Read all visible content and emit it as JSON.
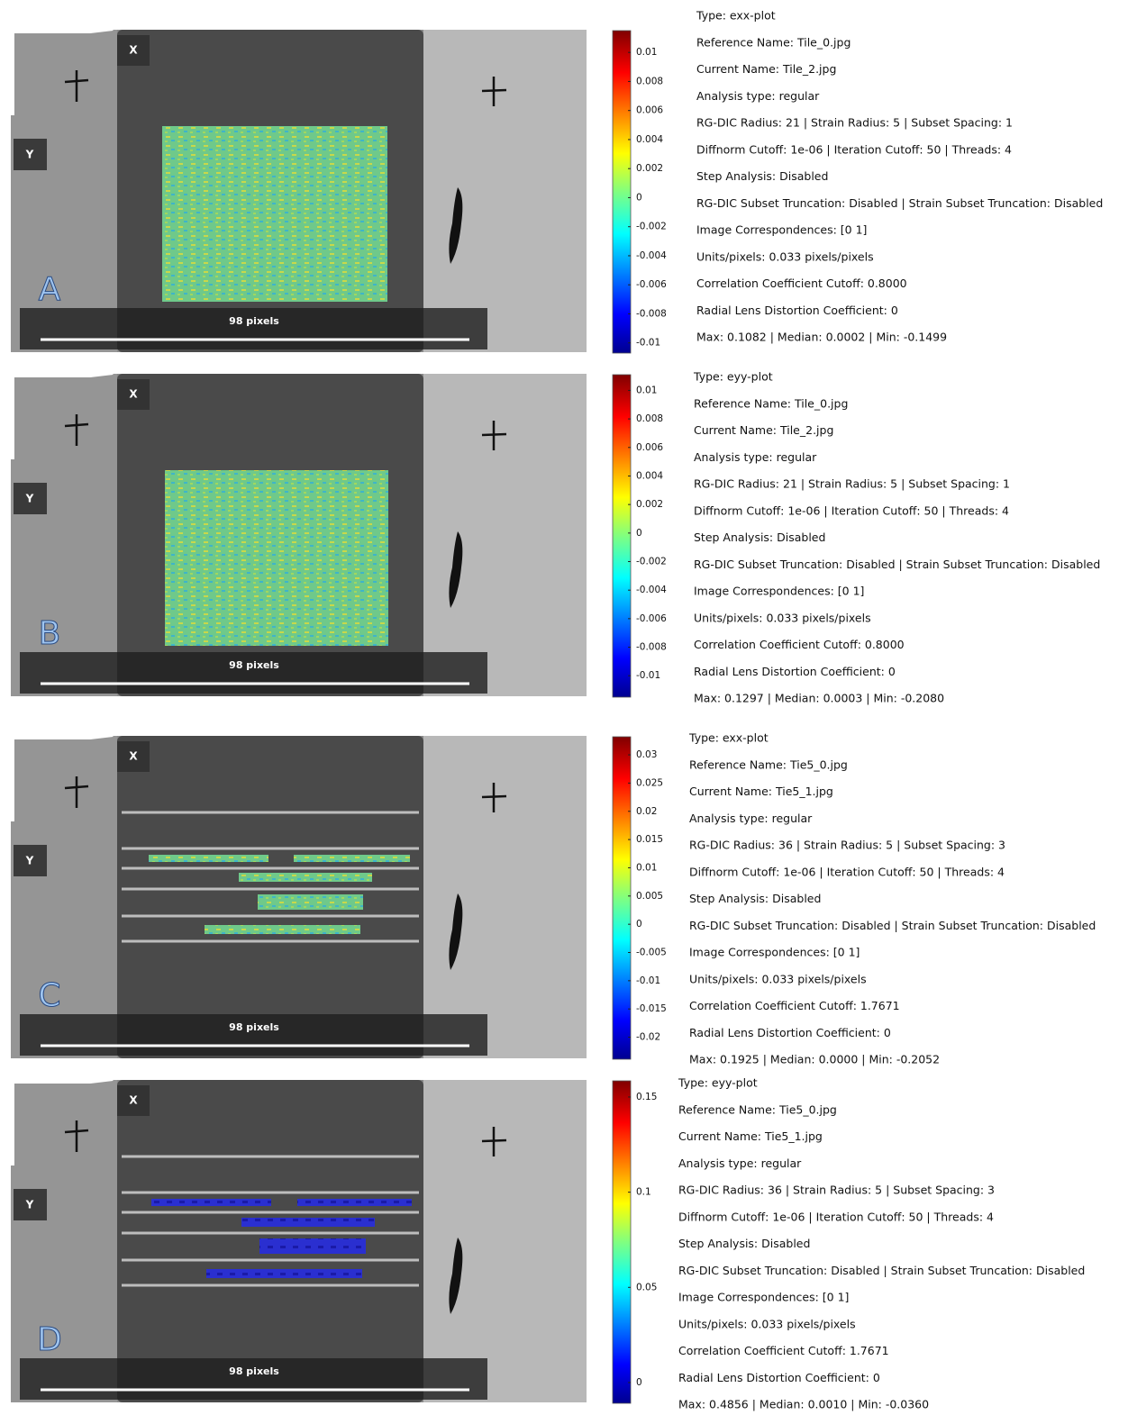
{
  "panels": [
    {
      "label": "A",
      "x_axis_label": "X",
      "y_axis_label": "Y",
      "scale_bar": "98 pixels",
      "colorbar": {
        "lim": [
          -0.0107,
          0.0115
        ],
        "ticks": [
          0.01,
          0.008,
          0.006,
          0.004,
          0.002,
          0,
          -0.002,
          -0.004,
          -0.006,
          -0.008,
          -0.01
        ]
      },
      "info": [
        "Type: exx-plot",
        "Reference Name: Tile_0.jpg",
        "Current Name: Tile_2.jpg",
        "Analysis type: regular",
        "RG-DIC Radius: 21 | Strain Radius: 5 | Subset Spacing: 1",
        "Diffnorm Cutoff: 1e-06 | Iteration Cutoff: 50 | Threads: 4",
        "Step Analysis: Disabled",
        "RG-DIC Subset Truncation: Disabled | Strain Subset Truncation: Disabled",
        "Image Correspondences: [0 1]",
        "Units/pixels: 0.033 pixels/pixels",
        "Correlation Coefficient Cutoff: 0.8000",
        "Radial Lens Distortion Coefficient: 0",
        "Max: 0.1082 | Median: 0.0002 | Min: -0.1499"
      ]
    },
    {
      "label": "B",
      "x_axis_label": "X",
      "y_axis_label": "Y",
      "scale_bar": "98 pixels",
      "colorbar": {
        "lim": [
          -0.0115,
          0.0111
        ],
        "ticks": [
          0.01,
          0.008,
          0.006,
          0.004,
          0.002,
          0,
          -0.002,
          -0.004,
          -0.006,
          -0.008,
          -0.01
        ]
      },
      "info": [
        "Type: eyy-plot",
        "Reference Name: Tile_0.jpg",
        "Current Name: Tile_2.jpg",
        "Analysis type: regular",
        "RG-DIC Radius: 21 | Strain Radius: 5 | Subset Spacing: 1",
        "Diffnorm Cutoff: 1e-06 | Iteration Cutoff: 50 | Threads: 4",
        "Step Analysis: Disabled",
        "RG-DIC Subset Truncation: Disabled | Strain Subset Truncation: Disabled",
        "Image Correspondences: [0 1]",
        "Units/pixels: 0.033 pixels/pixels",
        "Correlation Coefficient Cutoff: 0.8000",
        "Radial Lens Distortion Coefficient: 0",
        "Max: 0.1297 | Median: 0.0003 | Min: -0.2080"
      ]
    },
    {
      "label": "C",
      "x_axis_label": "X",
      "y_axis_label": "Y",
      "scale_bar": "98 pixels",
      "colorbar": {
        "lim": [
          -0.0239,
          0.0332
        ],
        "ticks": [
          0.03,
          0.025,
          0.02,
          0.015,
          0.01,
          0.005,
          0,
          -0.005,
          -0.01,
          -0.015,
          -0.02
        ]
      },
      "info": [
        "Type: exx-plot",
        "Reference Name: Tie5_0.jpg",
        "Current Name: Tie5_1.jpg",
        "Analysis type: regular",
        "RG-DIC Radius: 36 | Strain Radius: 5 | Subset Spacing: 3",
        "Diffnorm Cutoff: 1e-06 | Iteration Cutoff: 50 | Threads: 4",
        "Step Analysis: Disabled",
        "RG-DIC Subset Truncation: Disabled | Strain Subset Truncation: Disabled",
        "Image Correspondences: [0 1]",
        "Units/pixels: 0.033 pixels/pixels",
        "Correlation Coefficient Cutoff: 1.7671",
        "Radial Lens Distortion Coefficient: 0",
        "Max: 0.1925 | Median: 0.0000 | Min: -0.2052"
      ]
    },
    {
      "label": "D",
      "x_axis_label": "X",
      "y_axis_label": "Y",
      "scale_bar": "98 pixels",
      "colorbar": {
        "lim": [
          -0.0109,
          0.1585
        ],
        "ticks": [
          0.15,
          0.1,
          0.05,
          0
        ]
      },
      "info": [
        "Type: eyy-plot",
        "Reference Name: Tie5_0.jpg",
        "Current Name: Tie5_1.jpg",
        "Analysis type: regular",
        "RG-DIC Radius: 36 | Strain Radius: 5 | Subset Spacing: 3",
        "Diffnorm Cutoff: 1e-06 | Iteration Cutoff: 50 | Threads: 4",
        "Step Analysis: Disabled",
        "RG-DIC Subset Truncation: Disabled | Strain Subset Truncation: Disabled",
        "Image Correspondences: [0 1]",
        "Units/pixels: 0.033 pixels/pixels",
        "Correlation Coefficient Cutoff: 1.7671",
        "Radial Lens Distortion Coefficient: 0",
        "Max: 0.4856 | Median: 0.0010 | Min: -0.0360"
      ]
    }
  ]
}
